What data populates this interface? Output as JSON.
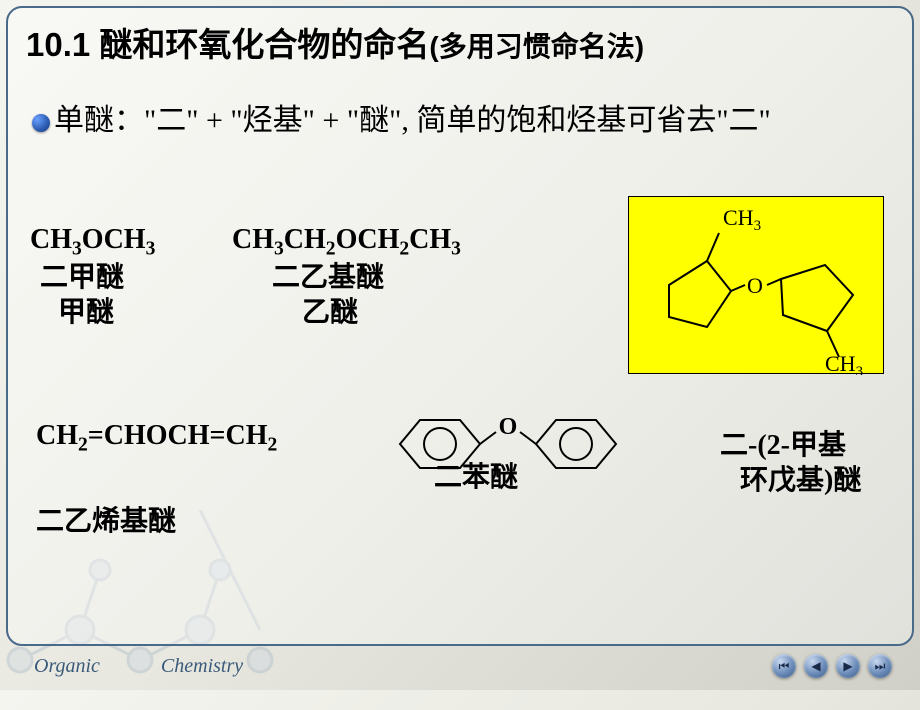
{
  "title_main": "10.1 醚和环氧化合物的命名",
  "title_sub": "(多用习惯命名法)",
  "bullet": "单醚：\"二\" + \"烃基\" + \"醚\", 简单的饱和烃基可省去\"二\"",
  "item1": {
    "formula_html": "CH<sub class='sub-s'>3</sub>OCH<sub class='sub-s'>3</sub>",
    "name1": "二甲醚",
    "name2": "甲醚"
  },
  "item2": {
    "formula_html": "CH<sub class='sub-s'>3</sub>CH<sub class='sub-s'>2</sub>OCH<sub class='sub-s'>2</sub>CH<sub class='sub-s'>3</sub>",
    "name1": "二乙基醚",
    "name2": "乙醚"
  },
  "item3": {
    "top_label": "CH<sub class='sub-s'>3</sub>",
    "bottom_label": "CH<sub class='sub-s'>3</sub>",
    "o_label": "O",
    "name_l1": "二-(2-甲基",
    "name_l2": "环戊基)醚",
    "highlight_color": "#ffff00",
    "ring_stroke": "#000000",
    "ring_stroke_width": 2
  },
  "item4": {
    "formula_html": "CH<sub class='sub-s'>2</sub>=CHOCH=CH<sub class='sub-s'>2</sub>",
    "name": "二乙烯基醚"
  },
  "item5": {
    "o_label": "O",
    "name": "二苯醚",
    "stroke": "#000000",
    "stroke_width": 2
  },
  "footer": {
    "word1": "Organic",
    "word2": "Chemistry"
  },
  "nav": {
    "first": "⏮",
    "prev": "◀",
    "next": "▶",
    "last": "⏭"
  },
  "colors": {
    "frame_border": "#4a6a8a",
    "bg_start": "#f5f5f0",
    "bg_end": "#d0d0c8",
    "text": "#000000"
  }
}
